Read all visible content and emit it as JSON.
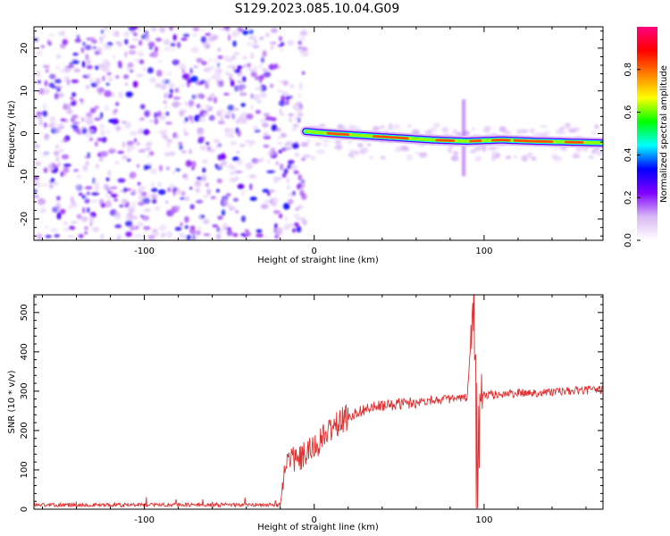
{
  "figure_title": "S129.2023.085.10.04.G09",
  "chart_data": [
    {
      "type": "heatmap",
      "title": "",
      "xlabel": "Height of straight line (km)",
      "ylabel": "Frequency (Hz)",
      "xlim": [
        -165,
        170
      ],
      "ylim": [
        -25,
        25
      ],
      "x_ticks": [
        -100,
        0,
        100
      ],
      "y_ticks": [
        -20,
        -10,
        0,
        10,
        20
      ],
      "grid": false,
      "colorbar": {
        "label": "Normalized spectral amplitude",
        "range": [
          0.0,
          1.0
        ],
        "ticks": [
          0.0,
          0.2,
          0.4,
          0.6,
          0.8
        ],
        "colormap": [
          "#ffffff",
          "#d8b8f4",
          "#8000ff",
          "#0000ff",
          "#00ffff",
          "#00ff00",
          "#ffff00",
          "#ff8000",
          "#ff0000",
          "#ff0080"
        ]
      },
      "noise_region": {
        "x_range": [
          -165,
          -5
        ],
        "freq_range": [
          -25,
          25
        ],
        "amplitude_range": [
          0.05,
          0.35
        ]
      },
      "signal_ridge": [
        {
          "x": -5,
          "freq": 0.5
        },
        {
          "x": 10,
          "freq": 0.0
        },
        {
          "x": 30,
          "freq": -0.5
        },
        {
          "x": 50,
          "freq": -1.0
        },
        {
          "x": 70,
          "freq": -1.5
        },
        {
          "x": 90,
          "freq": -1.8
        },
        {
          "x": 110,
          "freq": -1.5
        },
        {
          "x": 130,
          "freq": -1.8
        },
        {
          "x": 150,
          "freq": -2.0
        },
        {
          "x": 170,
          "freq": -2.2
        }
      ],
      "signal_peak_amplitude": 1.0,
      "disturbance": {
        "x": 88,
        "freq_range": [
          -10,
          8
        ]
      }
    },
    {
      "type": "line",
      "title": "",
      "xlabel": "Height of straight line (km)",
      "ylabel": "SNR (10 * v/v)",
      "xlim": [
        -165,
        170
      ],
      "ylim": [
        0,
        545
      ],
      "x_ticks": [
        -100,
        0,
        100
      ],
      "y_ticks": [
        0,
        100,
        200,
        300,
        400,
        500
      ],
      "grid": false,
      "color": "#e03030",
      "series": [
        {
          "x": [
            -165,
            -100,
            -50,
            -20,
            -18,
            -15,
            -10,
            -5,
            0,
            5,
            10,
            20,
            30,
            40,
            50,
            60,
            70,
            80,
            90,
            94,
            96,
            98,
            100,
            110,
            120,
            130,
            140,
            150,
            160,
            170
          ],
          "values": [
            10,
            10,
            10,
            10,
            80,
            140,
            120,
            140,
            155,
            180,
            205,
            235,
            255,
            262,
            268,
            272,
            278,
            280,
            282,
            540,
            65,
            300,
            290,
            292,
            295,
            296,
            298,
            300,
            302,
            305
          ]
        }
      ]
    }
  ]
}
